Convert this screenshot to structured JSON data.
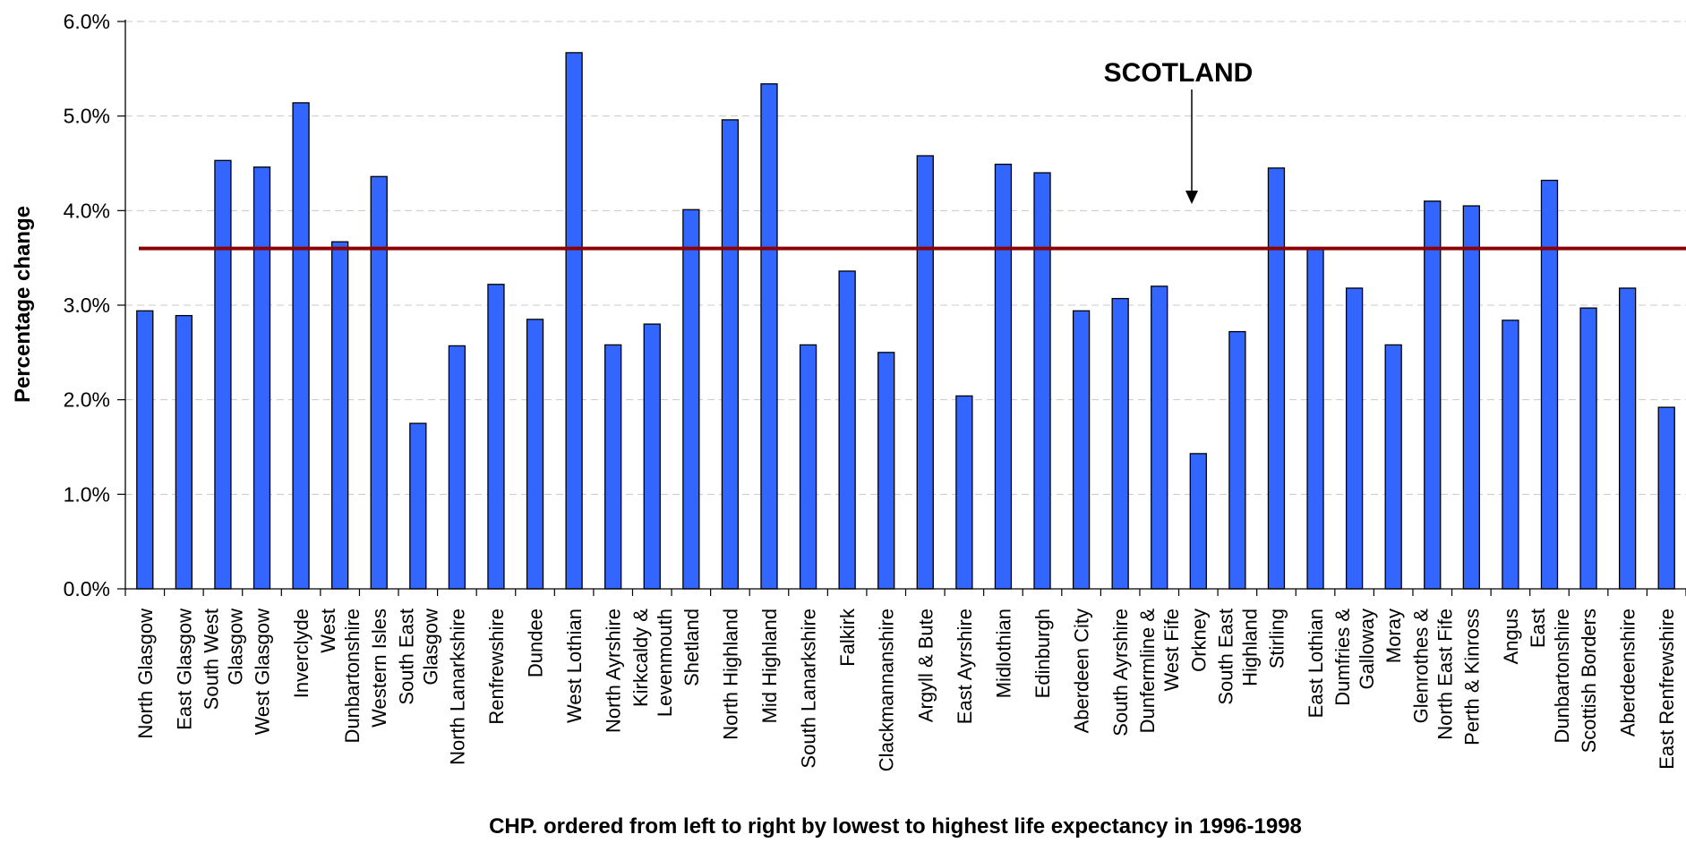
{
  "chart_data": {
    "type": "bar",
    "ylabel": "Percentage change",
    "xlabel": "CHP. ordered from left to right by lowest to highest life expectancy in 1996-1998",
    "ylim": [
      0,
      6
    ],
    "yticks": [
      "0.0%",
      "1.0%",
      "2.0%",
      "3.0%",
      "4.0%",
      "5.0%",
      "6.0%"
    ],
    "grid": true,
    "bar_color": "#3366FF",
    "reference_line": {
      "label": "SCOTLAND",
      "value": 3.6,
      "color": "#8B0000"
    },
    "categories": [
      [
        "North Glasgow"
      ],
      [
        "East Glasgow"
      ],
      [
        "South West",
        "Glasgow"
      ],
      [
        "West Glasgow"
      ],
      [
        "Inverclyde"
      ],
      [
        "West",
        "Dunbartonshire"
      ],
      [
        "Western Isles"
      ],
      [
        "South East",
        "Glasgow"
      ],
      [
        "North Lanarkshire"
      ],
      [
        "Renfrewshire"
      ],
      [
        "Dundee"
      ],
      [
        "West Lothian"
      ],
      [
        "North Ayrshire"
      ],
      [
        "Kirkcaldy &",
        "Levenmouth"
      ],
      [
        "Shetland"
      ],
      [
        "North Highland"
      ],
      [
        "Mid Highland"
      ],
      [
        "South Lanarkshire"
      ],
      [
        "Falkirk"
      ],
      [
        "Clackmannanshire"
      ],
      [
        "Argyll & Bute"
      ],
      [
        "East Ayrshire"
      ],
      [
        "Midlothian"
      ],
      [
        "Edinburgh"
      ],
      [
        "Aberdeen City"
      ],
      [
        "South Ayrshire"
      ],
      [
        "Dunfermline &",
        "West Fife"
      ],
      [
        "Orkney"
      ],
      [
        "South East",
        "Highland"
      ],
      [
        "Stirling"
      ],
      [
        "East Lothian"
      ],
      [
        "Dumfries &",
        "Galloway"
      ],
      [
        "Moray"
      ],
      [
        "Glenrothes &",
        "North East Fife"
      ],
      [
        "Perth & Kinross"
      ],
      [
        "Angus"
      ],
      [
        "East",
        "Dunbartonshire"
      ],
      [
        "Scottish Borders"
      ],
      [
        "Aberdeenshire"
      ],
      [
        "East Renfrewshire"
      ]
    ],
    "values": [
      2.94,
      2.89,
      4.53,
      4.46,
      5.14,
      3.67,
      4.36,
      1.75,
      2.57,
      3.22,
      2.85,
      5.67,
      2.58,
      2.8,
      4.01,
      4.96,
      5.34,
      2.58,
      3.36,
      2.5,
      4.58,
      2.04,
      4.49,
      4.4,
      2.94,
      3.07,
      3.2,
      1.43,
      2.72,
      4.45,
      3.59,
      3.18,
      2.58,
      4.1,
      4.05,
      2.84,
      4.32,
      2.97,
      3.18,
      1.92
    ]
  }
}
